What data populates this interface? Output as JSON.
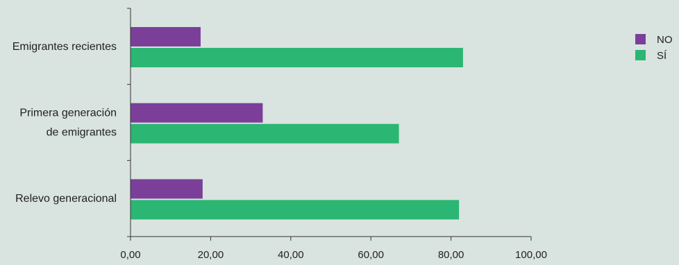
{
  "chart_data": {
    "type": "bar",
    "orientation": "horizontal",
    "categories": [
      [
        "Emigrantes recientes"
      ],
      [
        "Primera generación",
        "de emigrantes"
      ],
      [
        "Relevo generacional"
      ]
    ],
    "series": [
      {
        "name": "NO",
        "color": "#7b3f9a",
        "values": [
          17.5,
          33.0,
          18.0
        ]
      },
      {
        "name": "SÍ",
        "color": "#2bb673",
        "values": [
          83.0,
          67.0,
          82.0
        ]
      }
    ],
    "xlim": [
      0,
      100
    ],
    "x_ticks": [
      "0,00",
      "20,00",
      "40,00",
      "60,00",
      "80,00",
      "100,00"
    ],
    "x_tick_values": [
      0,
      20,
      40,
      60,
      80,
      100
    ],
    "xlabel": "",
    "ylabel": "",
    "title": "",
    "grid": false,
    "legend_position": "top-right"
  },
  "colors": {
    "background": "#d9e3df",
    "axis": "#333333"
  }
}
